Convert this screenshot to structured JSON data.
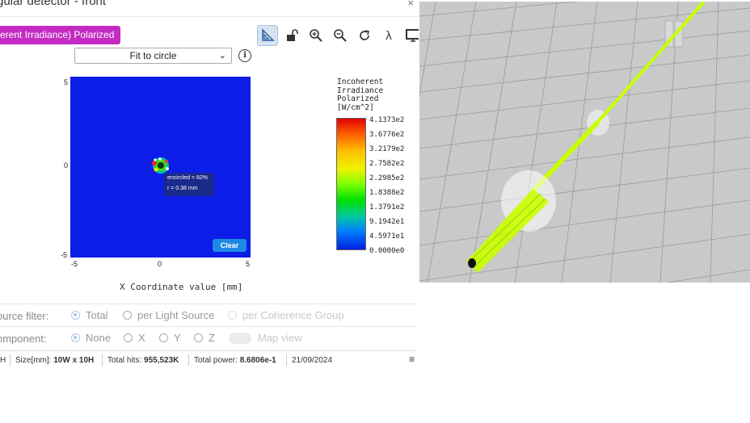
{
  "window": {
    "title": "gular detector - front",
    "close_symbol": "×"
  },
  "mode_button_label": "erent Irradiance) Polarized",
  "toolbar": {
    "buttons": [
      {
        "name": "ruler-icon"
      },
      {
        "name": "unlock-icon"
      },
      {
        "name": "zoom-in-icon"
      },
      {
        "name": "zoom-out-icon"
      },
      {
        "name": "refresh-icon"
      },
      {
        "name": "lambda-icon",
        "glyph": "λ"
      },
      {
        "name": "monitor-icon"
      }
    ]
  },
  "fit_select": {
    "value": "Fit to circle",
    "chevron": "⌄"
  },
  "info_symbol": "i",
  "plot": {
    "y_ticks": [
      "5",
      "0",
      "-5"
    ],
    "x_ticks": [
      "-5",
      "0",
      "5"
    ],
    "x_label": "X Coordinate value [mm]",
    "tooltip": {
      "line1": "encircled = 82%",
      "line2": "r = 0.38 mm"
    },
    "clear_label": "Clear",
    "background_color": "#0b1de6"
  },
  "legend": {
    "title": "Incoherent\nIrradiance\nPolarized\n[W/cm^2]",
    "values": [
      "4.1373e2",
      "3.6776e2",
      "3.2179e2",
      "2.7582e2",
      "2.2985e2",
      "1.8388e2",
      "1.3791e2",
      "9.1942e1",
      "4.5971e1",
      "0.0000e0"
    ]
  },
  "source_filter": {
    "label": "ource filter:",
    "options": [
      {
        "label": "Total",
        "checked": true
      },
      {
        "label": "per Light Source",
        "checked": false
      },
      {
        "label": "per Coherence Group",
        "checked": false
      }
    ]
  },
  "component": {
    "label": "omponent:",
    "options": [
      {
        "label": "None",
        "checked": true
      },
      {
        "label": "X",
        "checked": false
      },
      {
        "label": "Y",
        "checked": false
      },
      {
        "label": "Z",
        "checked": false
      }
    ],
    "map_view_label": "Map view"
  },
  "status": {
    "item0": "H",
    "size_label": "Size[mm]:",
    "size_value": "10W x 10H",
    "hits_label": "Total hits:",
    "hits_value": "955,523K",
    "power_label": "Total power:",
    "power_value": "8.6806e-1",
    "date": "21/09/2024",
    "menu_symbol": "≡"
  },
  "viewport": {
    "background": "#c9c9c9",
    "beam_color": "#c8ff00"
  }
}
